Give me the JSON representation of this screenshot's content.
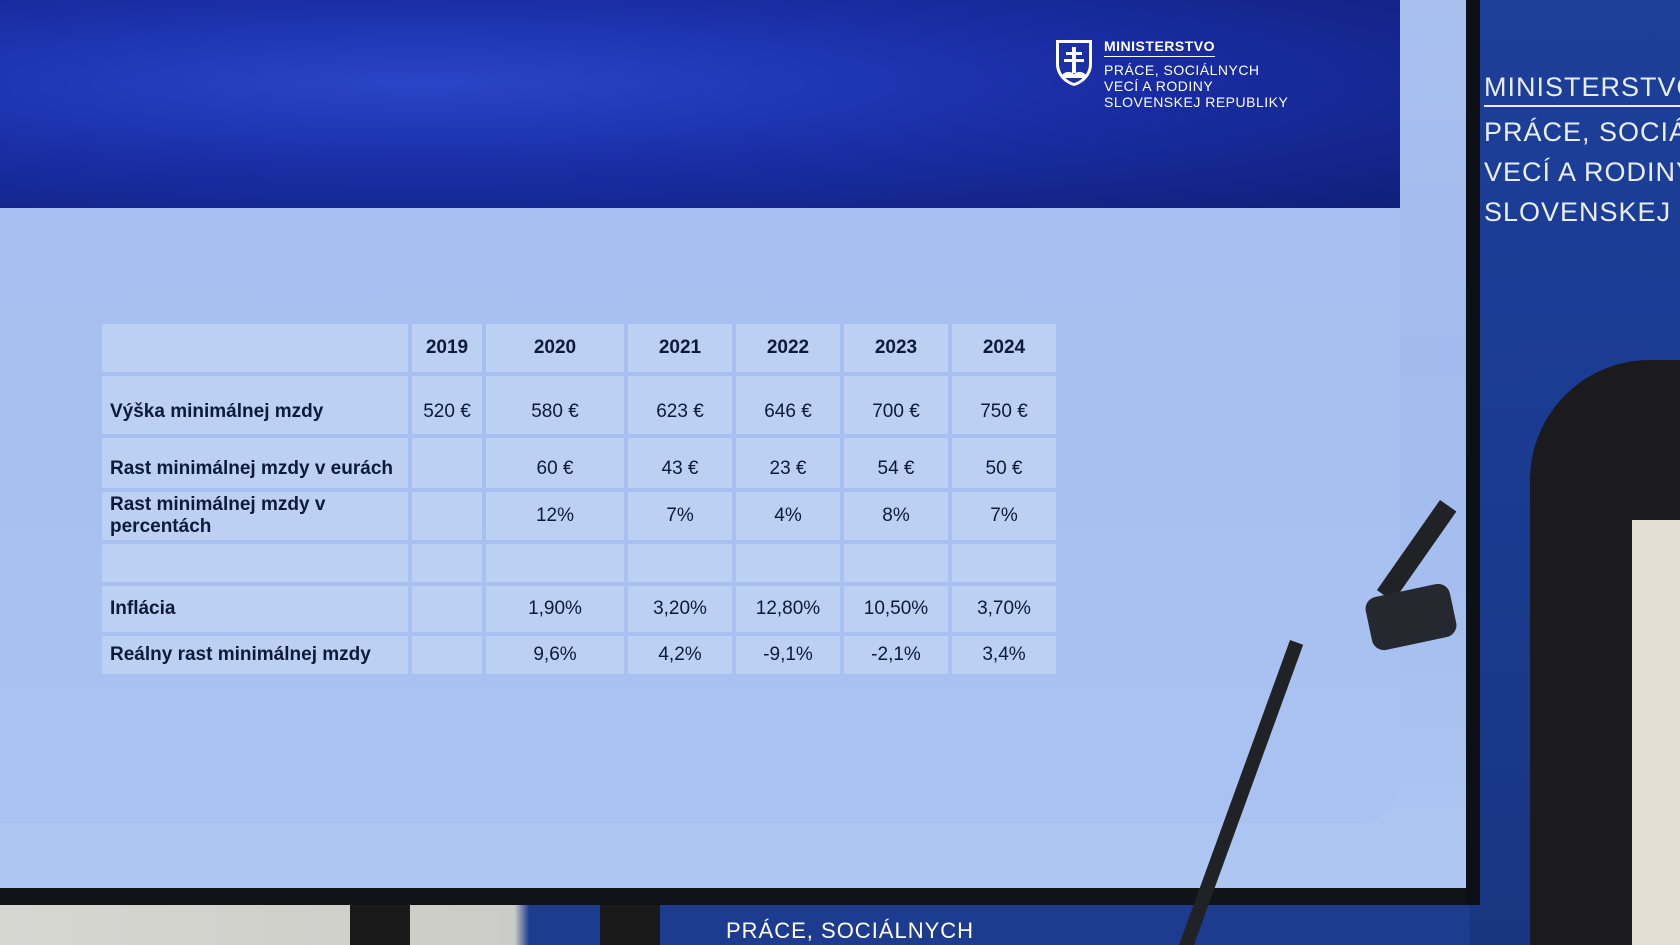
{
  "slide": {
    "logo": {
      "line1": "MINISTERSTVO",
      "line2": "PRÁCE, SOCIÁLNYCH",
      "line3": "VECÍ A RODINY",
      "line4": "SLOVENSKEJ REPUBLIKY"
    },
    "table": {
      "headers": [
        "",
        "2019",
        "2020",
        "2021",
        "2022",
        "2023",
        "2024"
      ],
      "rows": [
        {
          "label": "Výška minimálnej mzdy",
          "values": [
            "520 €",
            "580 €",
            "623 €",
            "646 €",
            "700 €",
            "750 €"
          ]
        },
        {
          "label": "Rast minimálnej mzdy v eurách",
          "values": [
            "",
            "60 €",
            "43 €",
            "23 €",
            "54 €",
            "50 €"
          ]
        },
        {
          "label": "Rast minimálnej mzdy v percentách",
          "values": [
            "",
            "12%",
            "7%",
            "4%",
            "8%",
            "7%"
          ]
        },
        {
          "label": "",
          "values": [
            "",
            "",
            "",
            "",
            "",
            ""
          ]
        },
        {
          "label": "Inflácia",
          "values": [
            "",
            "1,90%",
            "3,20%",
            "12,80%",
            "10,50%",
            "3,70%"
          ]
        },
        {
          "label": "Reálny rast minimálnej mzdy",
          "values": [
            "",
            "9,6%",
            "4,2%",
            "-9,1%",
            "-2,1%",
            "3,4%"
          ]
        }
      ]
    }
  },
  "backdrop": {
    "line1": "MINISTERSTVO",
    "line2": "PRÁCE, SOCIÁL",
    "line3": "VECÍ A RODINY",
    "line4": "SLOVENSKEJ RE",
    "bottom": "PRÁCE, SOCIÁLNYCH"
  },
  "colors": {
    "header_blue": "#1a2fa8",
    "slide_body": "#a7bff0",
    "table_cell": "#bcd0f4",
    "backdrop_blue": "#1c3f9a"
  }
}
